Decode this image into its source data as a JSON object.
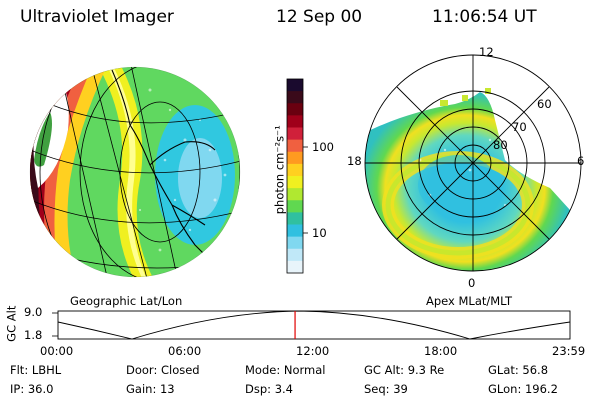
{
  "header": {
    "title": "Ultraviolet Imager",
    "date": "12 Sep 00",
    "time": "11:06:54 UT"
  },
  "colorbar": {
    "unit_label": "photon cm⁻²s⁻¹",
    "ticks": [
      "100",
      "10"
    ],
    "colors": [
      "#1a0a2e",
      "#3a0a1a",
      "#6a0010",
      "#a0001a",
      "#d0203a",
      "#f06040",
      "#ff9a20",
      "#ffd020",
      "#f0f020",
      "#b0e830",
      "#60d850",
      "#30c0a0",
      "#30c0e0",
      "#80d8f0",
      "#c0e8f8",
      "#e8f4fa"
    ]
  },
  "left_panel": {
    "caption": "Geographic Lat/Lon"
  },
  "right_panel": {
    "caption": "Apex MLat/MLT",
    "mlt_labels": {
      "top": "12",
      "left": "18",
      "right": "6",
      "bottom": "0"
    },
    "lat_labels": [
      "60",
      "70",
      "80"
    ]
  },
  "altitude_strip": {
    "axis_label": "GC Alt",
    "y_ticks": [
      "9.0",
      "1.8"
    ],
    "x_ticks": [
      "00:00",
      "06:00",
      "12:00",
      "18:00",
      "23:59"
    ],
    "marker_color": "#e00000",
    "marker_time_fraction": 0.463
  },
  "info": {
    "row1": [
      {
        "label": "Flt:",
        "value": "LBHL"
      },
      {
        "label": "Door:",
        "value": "Closed"
      },
      {
        "label": "Mode:",
        "value": "Normal"
      },
      {
        "label": "GC Alt:",
        "value": "9.3 Re"
      },
      {
        "label": "GLat:",
        "value": "56.8"
      }
    ],
    "row2": [
      {
        "label": "IP:",
        "value": "36.0"
      },
      {
        "label": "Gain:",
        "value": "13"
      },
      {
        "label": "Dsp:",
        "value": "3.4"
      },
      {
        "label": "Seq:",
        "value": "39"
      },
      {
        "label": "GLon:",
        "value": "196.2"
      }
    ]
  }
}
